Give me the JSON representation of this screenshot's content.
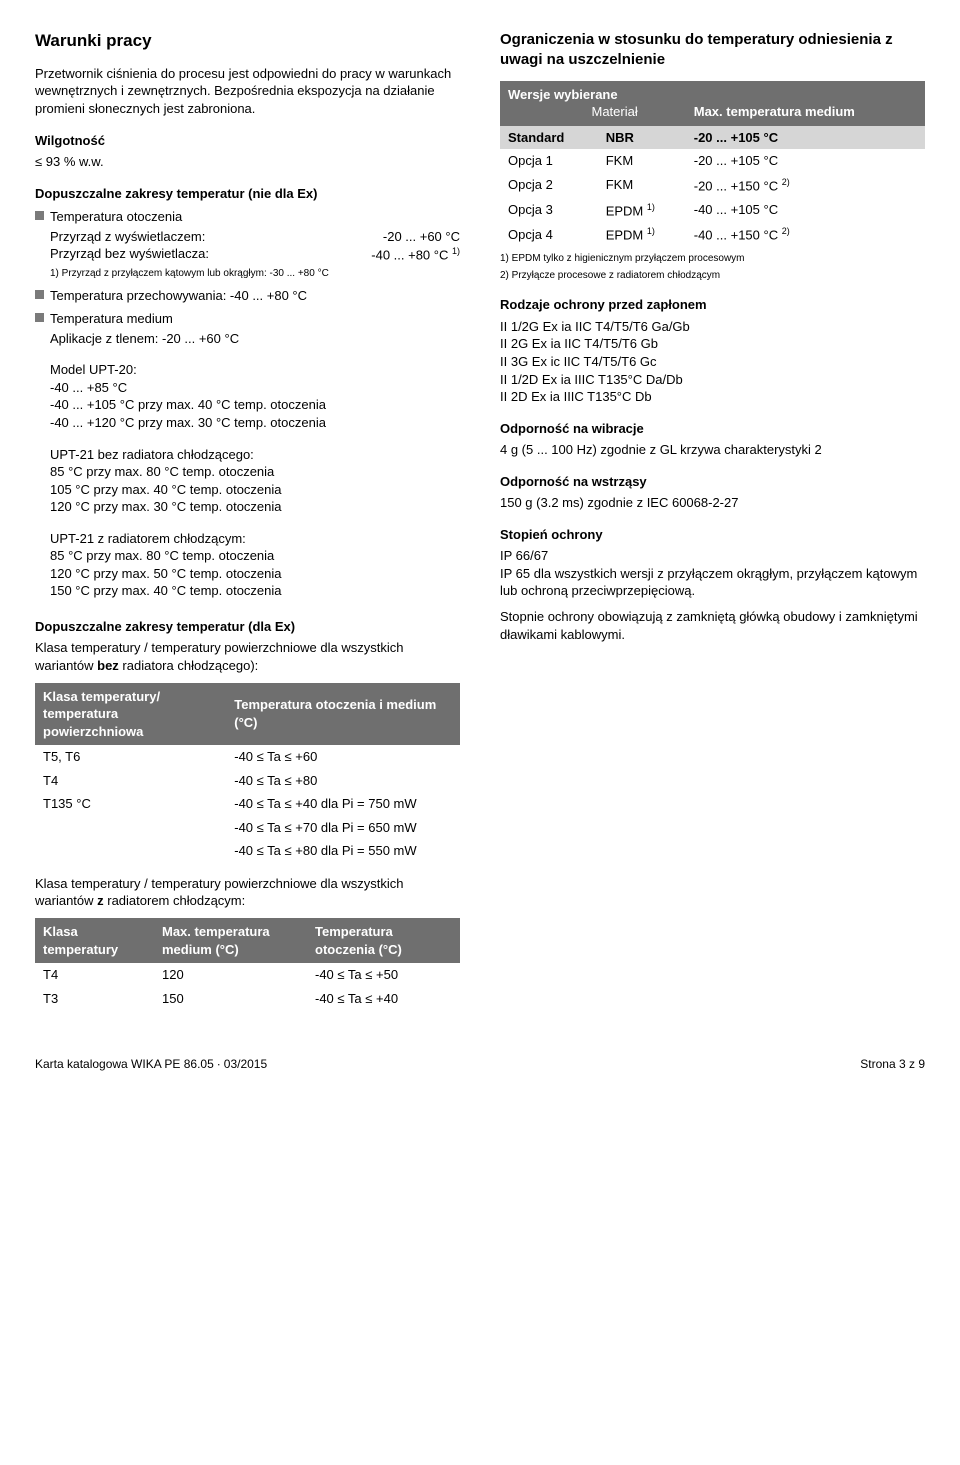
{
  "left": {
    "title": "Warunki pracy",
    "intro": "Przetwornik ciśnienia do procesu jest odpowiedni do pracy w warunkach wewnętrznych i zewnętrznych. Bezpośrednia ekspozycja na działanie promieni słonecznych jest zabroniona.",
    "humidity_head": "Wilgotność",
    "humidity_val": "≤ 93 % w.w.",
    "nonex_head": "Dopuszczalne zakresy temperatur (nie dla Ex)",
    "b1_head": "Temperatura otoczenia",
    "b1_r1a": "Przyrząd z wyświetlaczem:",
    "b1_r1b": "-20 ... +60 °C",
    "b1_r2a": "Przyrząd bez wyświetlacza:",
    "b1_r2b": "-40 ... +80 °C ",
    "b1_r2sup": "1)",
    "b1_fn": "1) Przyrząd z przyłączem kątowym lub okrągłym: -30 ... +80 °C",
    "b2": "Temperatura przechowywania: -40 ... +80 °C",
    "b3_head": "Temperatura medium",
    "b3_l1": "Aplikacje z tlenem: -20 ... +60 °C",
    "m_upt20": "Model UPT-20:",
    "m_upt20_l1": "-40 ... +85 °C",
    "m_upt20_l2": "-40 ... +105 °C przy max. 40 °C temp. otoczenia",
    "m_upt20_l3": "-40 ... +120 °C przy max. 30 °C temp. otoczenia",
    "m_upt21a": "UPT-21 bez radiatora chłodzącego:",
    "m_upt21a_l1": "85 °C przy max. 80 °C temp. otoczenia",
    "m_upt21a_l2": "105 °C przy max. 40 °C temp. otoczenia",
    "m_upt21a_l3": "120 °C przy max. 30 °C temp. otoczenia",
    "m_upt21b": "UPT-21 z radiatorem chłodzącym:",
    "m_upt21b_l1": "85 °C przy max. 80 °C temp. otoczenia",
    "m_upt21b_l2": "120 °C przy max. 50 °C temp. otoczenia",
    "m_upt21b_l3": "150 °C przy max. 40 °C temp. otoczenia",
    "ex_head": "Dopuszczalne zakresy temperatur (dla Ex)",
    "ex_sub1": "Klasa temperatury / temperatury powierzchniowe dla wszystkich wariantów bez radiatora chłodzącego):",
    "t1": {
      "h1": "Klasa temperatury/ temperatura powierzchniowa",
      "h2": "Temperatura otoczenia i medium (°C)",
      "rows": [
        [
          "T5, T6",
          "-40 ≤ Ta ≤ +60"
        ],
        [
          "T4",
          "-40 ≤ Ta ≤ +80"
        ],
        [
          "T135 °C",
          "-40 ≤ Ta ≤ +40 dla Pi = 750 mW"
        ],
        [
          "",
          "-40 ≤ Ta ≤ +70 dla Pi = 650 mW"
        ],
        [
          "",
          "-40 ≤ Ta ≤ +80 dla Pi = 550 mW"
        ]
      ]
    },
    "ex_sub2": "Klasa temperatury / temperatury powierzchniowe dla wszystkich wariantów z radiatorem chłodzącym:",
    "t2": {
      "h1": "Klasa temperatury",
      "h2": "Max. temperatura medium (°C)",
      "h3": "Temperatura otoczenia (°C)",
      "rows": [
        [
          "T4",
          "120",
          "-40 ≤ Ta ≤ +50"
        ],
        [
          "T3",
          "150",
          "-40 ≤ Ta ≤ +40"
        ]
      ]
    }
  },
  "right": {
    "title": "Ograniczenia w stosunku do temperatury odniesienia z uwagi na uszczelnienie",
    "vt": {
      "h1": "Wersje wybierane",
      "h2": "Materiał",
      "h3": "Max. temperatura medium",
      "rows": [
        {
          "c0": "Standard",
          "c1": "NBR",
          "c2": "-20 ... +105 °C",
          "std": true
        },
        {
          "c0": "Opcja 1",
          "c1": "FKM",
          "c2": "-20 ... +105 °C"
        },
        {
          "c0": "Opcja 2",
          "c1": "FKM",
          "c2": "-20 ... +150 °C ",
          "sup": "2)"
        },
        {
          "c0": "Opcja 3",
          "c1": "EPDM ",
          "c1sup": "1)",
          "c2": "-40 ... +105 °C"
        },
        {
          "c0": "Opcja 4",
          "c1": "EPDM ",
          "c1sup": "1)",
          "c2": "-40 ... +150 °C ",
          "sup": "2)"
        }
      ]
    },
    "vt_fn1": "1) EPDM tylko z higienicznym przyłączem procesowym",
    "vt_fn2": "2) Przyłącze procesowe z radiatorem chłodzącym",
    "ign_head": "Rodzaje ochrony przed zapłonem",
    "ign": [
      "II 1/2G Ex ia IIC T4/T5/T6 Ga/Gb",
      "II 2G Ex ia IIC T4/T5/T6 Gb",
      "II 3G Ex ic IIC T4/T5/T6 Gc",
      "II 1/2D Ex ia IIIC T135°C Da/Db",
      "II 2D Ex ia IIIC T135°C Db"
    ],
    "vib_head": "Odporność na wibracje",
    "vib": "4 g (5 ... 100 Hz) zgodnie z GL krzywa charakterystyki 2",
    "shock_head": "Odporność na wstrząsy",
    "shock": "150 g (3.2 ms) zgodnie z IEC 60068-2-27",
    "ip_head": "Stopień ochrony",
    "ip_l1": "IP 66/67",
    "ip_l2": "IP 65 dla wszystkich wersji z przyłączem okrągłym, przyłączem kątowym lub ochroną przeciwprzepięciową.",
    "ip_note": "Stopnie ochrony obowiązują z zamkniętą główką obudowy i zamkniętymi dławikami kablowymi."
  },
  "footer": {
    "left": "Karta katalogowa WIKA PE 86.05 ∙ 03/2015",
    "right": "Strona 3 z 9"
  }
}
